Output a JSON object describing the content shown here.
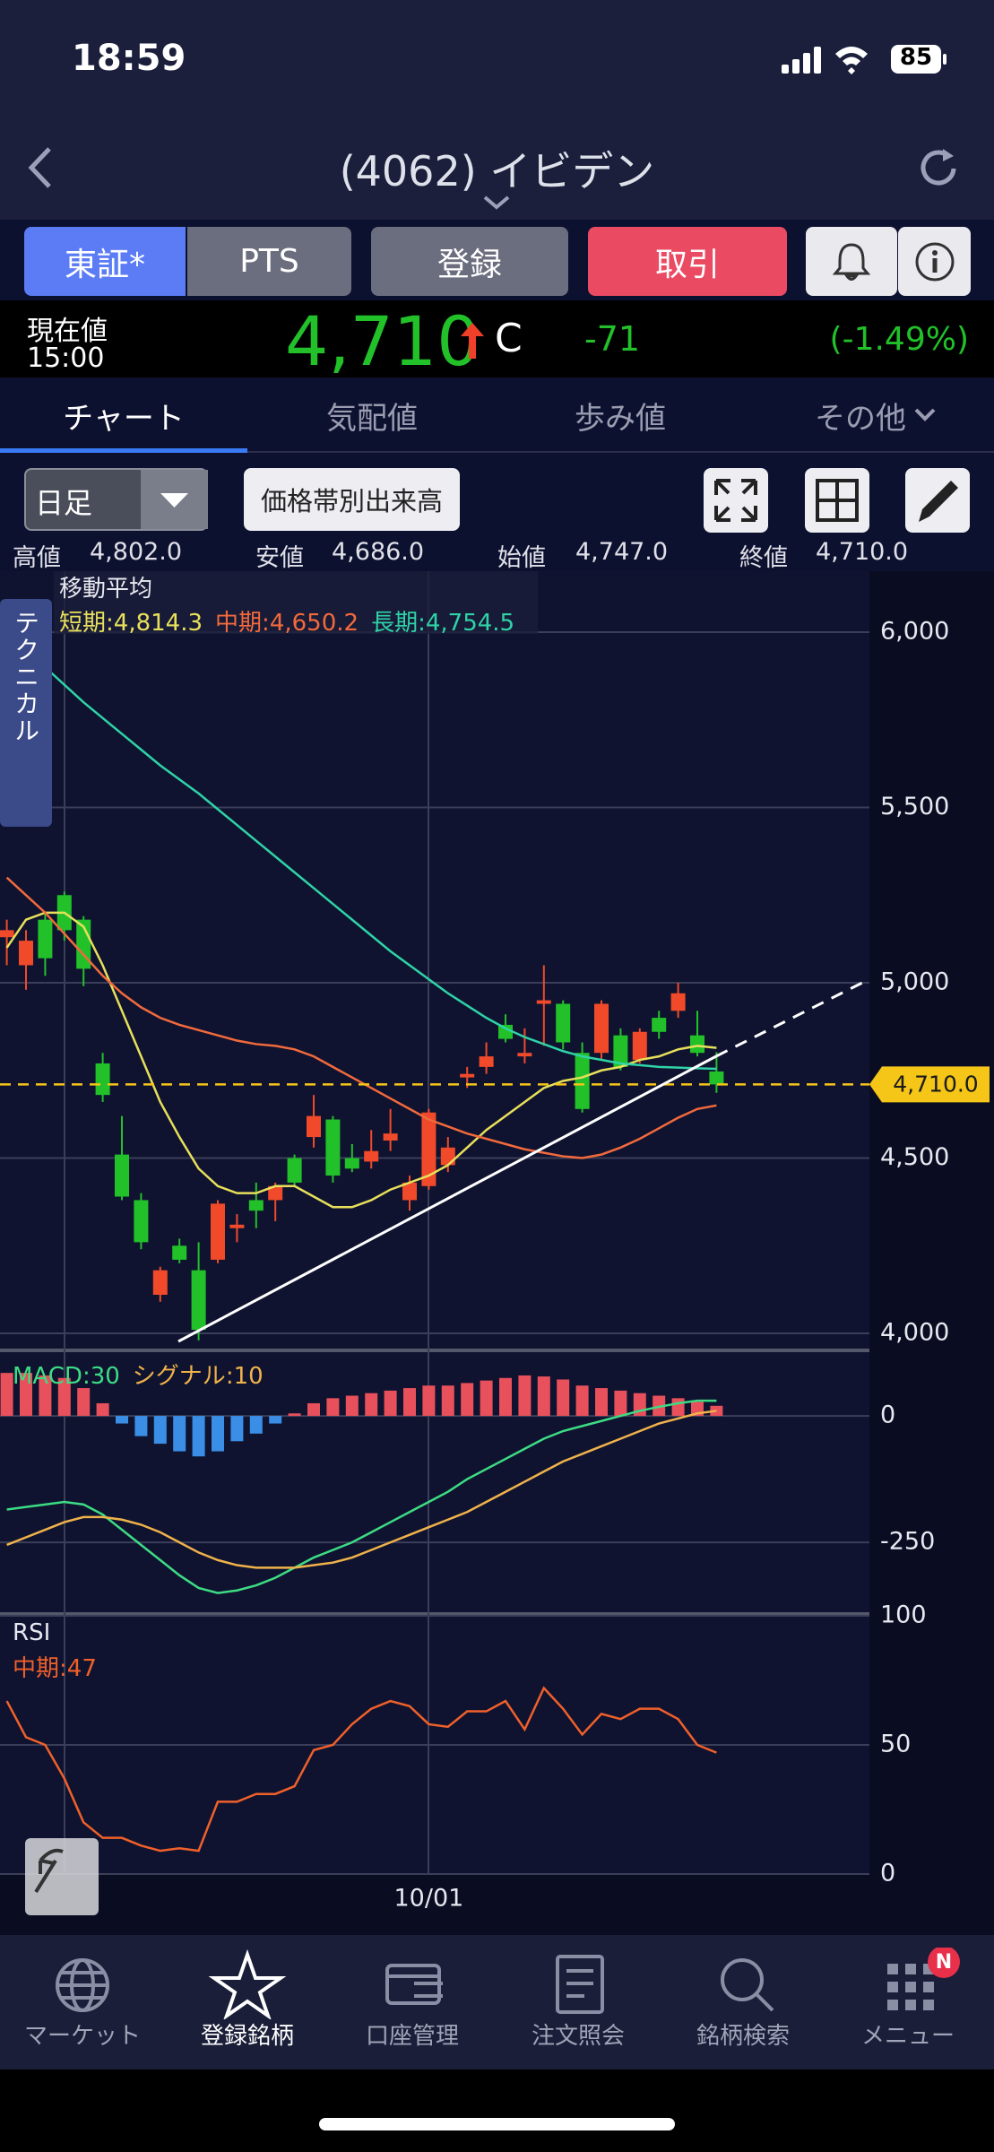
{
  "status_bar": {
    "time": "18:59",
    "battery": "85"
  },
  "header": {
    "title": "(4062) イビデン"
  },
  "buttons": [
    "東証*",
    "PTS",
    "登録",
    "取引"
  ],
  "quote": {
    "label": "現在値",
    "time": "15:00",
    "price": "4,710",
    "flag": "C",
    "change": "-71",
    "change_pct": "(-1.49%)"
  },
  "tabs": [
    "チャート",
    "気配値",
    "歩み値",
    "その他"
  ],
  "controls": {
    "period": "日足",
    "volume_profile": "価格帯別出来高"
  },
  "ohlc": [
    {
      "label": "高値",
      "value": "4,802.0"
    },
    {
      "label": "安値",
      "value": "4,686.0"
    },
    {
      "label": "始値",
      "value": "4,747.0"
    },
    {
      "label": "終値",
      "value": "4,710.0"
    }
  ],
  "side_tab": "テクニカル",
  "nav": [
    "マーケット",
    "登録銘柄",
    "口座管理",
    "注文照会",
    "銘柄検索",
    "メニュー"
  ],
  "badge": "N",
  "chart_data": [
    {
      "type": "candlestick",
      "title": "移動平均",
      "separator": ":",
      "categories": [
        null,
        null,
        null,
        null,
        null,
        null,
        null,
        null,
        null,
        null,
        null,
        null,
        null,
        null,
        null,
        null,
        null,
        null,
        null,
        null,
        null,
        null,
        "10/01",
        null,
        null,
        null,
        null,
        null,
        null,
        null,
        null,
        null,
        null,
        null,
        null,
        null,
        null,
        null
      ],
      "open": [
        5130,
        5050,
        5180,
        5250,
        5180,
        4770,
        4510,
        4380,
        4110,
        4250,
        4180,
        4210,
        4300,
        4380,
        4380,
        4500,
        4560,
        4610,
        4500,
        4490,
        4550,
        4380,
        4420,
        4480,
        4730,
        4760,
        4880,
        4790,
        4940,
        4940,
        4800,
        4800,
        4850,
        4780,
        4900,
        4920,
        4850,
        4747
      ],
      "high": [
        5180,
        5150,
        5200,
        5260,
        5190,
        4800,
        4620,
        4400,
        4190,
        4270,
        4260,
        4380,
        4340,
        4430,
        4430,
        4510,
        4680,
        4620,
        4540,
        4580,
        4640,
        4450,
        4640,
        4560,
        4760,
        4830,
        4910,
        4870,
        5050,
        4950,
        4830,
        4950,
        4870,
        4870,
        4920,
        5000,
        4920,
        4802
      ],
      "low": [
        5050,
        4980,
        5020,
        5120,
        4990,
        4660,
        4380,
        4240,
        4090,
        4200,
        3980,
        4200,
        4260,
        4300,
        4320,
        4420,
        4530,
        4430,
        4460,
        4470,
        4520,
        4350,
        4410,
        4460,
        4700,
        4740,
        4830,
        4770,
        4820,
        4810,
        4630,
        4780,
        4750,
        4770,
        4840,
        4900,
        4790,
        4686
      ],
      "close": [
        5150,
        5120,
        5070,
        5150,
        5040,
        4680,
        4390,
        4260,
        4180,
        4210,
        4010,
        4370,
        4310,
        4350,
        4420,
        4430,
        4620,
        4450,
        4470,
        4520,
        4570,
        4430,
        4630,
        4530,
        4740,
        4790,
        4840,
        4800,
        4950,
        4830,
        4640,
        4940,
        4760,
        4860,
        4860,
        4970,
        4800,
        4710
      ],
      "up_color": "#f04a2a",
      "down_color": "#22c12a",
      "series": [
        {
          "name": "短期",
          "color": "#e8e05a",
          "values": [
            5100,
            5180,
            5200,
            5200,
            5160,
            5050,
            4920,
            4790,
            4660,
            4560,
            4470,
            4420,
            4400,
            4400,
            4420,
            4420,
            4390,
            4360,
            4360,
            4380,
            4410,
            4430,
            4450,
            4480,
            4530,
            4580,
            4620,
            4660,
            4700,
            4720,
            4730,
            4750,
            4760,
            4780,
            4790,
            4810,
            4820,
            4814.3
          ],
          "value_labels": [
            null,
            null,
            null,
            null,
            null,
            null,
            null,
            null,
            null,
            null,
            null,
            null,
            null,
            null,
            null,
            null,
            null,
            null,
            null,
            null,
            null,
            null,
            null,
            null,
            null,
            null,
            null,
            null,
            null,
            null,
            null,
            null,
            null,
            null,
            null,
            null,
            null,
            "4,814.3"
          ]
        },
        {
          "name": "中期",
          "color": "#f26a3c",
          "values": [
            5300,
            5250,
            5200,
            5140,
            5080,
            5020,
            4970,
            4930,
            4900,
            4880,
            4865,
            4850,
            4835,
            4825,
            4820,
            4810,
            4790,
            4760,
            4730,
            4700,
            4670,
            4640,
            4610,
            4590,
            4570,
            4555,
            4540,
            4525,
            4515,
            4505,
            4500,
            4510,
            4530,
            4555,
            4585,
            4615,
            4640,
            4650.2
          ],
          "value_labels": [
            null,
            null,
            null,
            null,
            null,
            null,
            null,
            null,
            null,
            null,
            null,
            null,
            null,
            null,
            null,
            null,
            null,
            null,
            null,
            null,
            null,
            null,
            null,
            null,
            null,
            null,
            null,
            null,
            null,
            null,
            null,
            null,
            null,
            null,
            null,
            null,
            null,
            "4,650.2"
          ]
        },
        {
          "name": "長期",
          "color": "#2fd3a7",
          "values": [
            5990,
            5950,
            5900,
            5850,
            5800,
            5755,
            5710,
            5665,
            5620,
            5580,
            5540,
            5495,
            5450,
            5405,
            5360,
            5315,
            5270,
            5225,
            5180,
            5135,
            5090,
            5050,
            5010,
            4970,
            4935,
            4900,
            4870,
            4845,
            4825,
            4805,
            4790,
            4780,
            4770,
            4765,
            4760,
            4758,
            4756,
            4754.5
          ],
          "value_labels": [
            null,
            null,
            null,
            null,
            null,
            null,
            null,
            null,
            null,
            null,
            null,
            null,
            null,
            null,
            null,
            null,
            null,
            null,
            null,
            null,
            null,
            null,
            null,
            null,
            null,
            null,
            null,
            null,
            null,
            null,
            null,
            null,
            null,
            null,
            null,
            null,
            null,
            "4,754.5"
          ]
        }
      ],
      "price_line": {
        "value": 4710,
        "label": "4,710.0",
        "color": "#f5c518"
      },
      "ylim": [
        3954,
        6174
      ],
      "yticks": [
        {
          "value": 4000,
          "label": "4,000"
        },
        {
          "value": 4500,
          "label": "4,500"
        },
        {
          "value": 5000,
          "label": "5,000"
        },
        {
          "value": 5500,
          "label": "5,500"
        },
        {
          "value": 6000,
          "label": "6,000"
        }
      ],
      "grid": true
    },
    {
      "type": "macd",
      "separator": ":",
      "histogram": {
        "values": [
          85,
          85,
          80,
          75,
          55,
          25,
          -15,
          -40,
          -55,
          -70,
          -80,
          -70,
          -50,
          -35,
          -15,
          5,
          25,
          35,
          40,
          45,
          50,
          55,
          60,
          60,
          65,
          70,
          75,
          80,
          78,
          72,
          60,
          55,
          50,
          45,
          40,
          35,
          28,
          20
        ],
        "positive_color": "#e8505b",
        "negative_color": "#3a8ee6"
      },
      "series": [
        {
          "name": "MACD",
          "color": "#3ddc84",
          "values": [
            -185,
            -180,
            -175,
            -170,
            -175,
            -195,
            -225,
            -255,
            -285,
            -315,
            -340,
            -350,
            -345,
            -335,
            -320,
            -300,
            -280,
            -265,
            -250,
            -230,
            -210,
            -190,
            -170,
            -150,
            -125,
            -105,
            -85,
            -65,
            -45,
            -30,
            -20,
            -10,
            0,
            10,
            18,
            25,
            30,
            30
          ]
        },
        {
          "name": "シグナル",
          "color": "#f0b24a",
          "values": [
            -255,
            -240,
            -225,
            -210,
            -200,
            -200,
            -205,
            -215,
            -230,
            -250,
            -270,
            -285,
            -295,
            -300,
            -300,
            -300,
            -295,
            -290,
            -280,
            -265,
            -250,
            -235,
            -220,
            -205,
            -190,
            -170,
            -150,
            -130,
            -110,
            -90,
            -75,
            -60,
            -45,
            -30,
            -15,
            -5,
            5,
            10
          ]
        }
      ],
      "ylim": [
        -388,
        126
      ],
      "yticks": [
        0,
        -250
      ],
      "grid": true
    },
    {
      "type": "rsi",
      "title": "RSI",
      "separator": ":",
      "series": [
        {
          "name": "中期",
          "color": "#f0602a",
          "values": [
            67,
            53,
            50,
            37,
            20,
            14,
            14,
            11,
            9,
            10,
            9,
            28,
            28,
            31,
            31,
            34,
            48,
            50,
            58,
            64,
            67,
            65,
            58,
            57,
            63,
            63,
            67,
            56,
            72,
            64,
            54,
            62,
            60,
            64,
            64,
            60,
            50,
            47
          ]
        }
      ],
      "ylim": [
        0,
        100
      ],
      "yticks": [
        100,
        50,
        0
      ],
      "grid": true
    }
  ]
}
